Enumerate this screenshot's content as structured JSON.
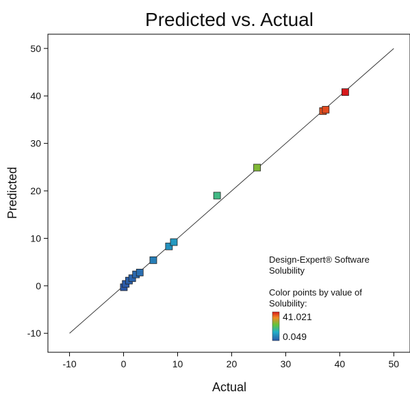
{
  "chart_data": {
    "type": "scatter",
    "title": "Predicted vs. Actual",
    "xlabel": "Actual",
    "ylabel": "Predicted",
    "xlim": [
      -14,
      53
    ],
    "ylim": [
      -14,
      53
    ],
    "xticks": [
      -10,
      0,
      10,
      20,
      30,
      40,
      50
    ],
    "yticks": [
      -10,
      0,
      10,
      20,
      30,
      40,
      50
    ],
    "reference_line": {
      "from": [
        -10,
        -10
      ],
      "to": [
        50,
        50
      ]
    },
    "points": [
      {
        "x": 0.049,
        "y": -0.3
      },
      {
        "x": 0.4,
        "y": 0.4
      },
      {
        "x": 1.0,
        "y": 1.1
      },
      {
        "x": 1.6,
        "y": 1.6
      },
      {
        "x": 2.3,
        "y": 2.4
      },
      {
        "x": 3.0,
        "y": 2.8
      },
      {
        "x": 5.5,
        "y": 5.4
      },
      {
        "x": 8.4,
        "y": 8.3
      },
      {
        "x": 9.3,
        "y": 9.2
      },
      {
        "x": 17.3,
        "y": 19.0
      },
      {
        "x": 24.7,
        "y": 24.9
      },
      {
        "x": 36.9,
        "y": 36.8
      },
      {
        "x": 37.4,
        "y": 37.1
      },
      {
        "x": 41.021,
        "y": 40.8
      }
    ],
    "software_label": "Design-Expert® Software",
    "response_label": "Solubility",
    "color_label_line1": "Color points by value of",
    "color_label_line2": "Solubility:",
    "color_max": 41.021,
    "color_min": 0.049,
    "color_max_label": "41.021",
    "color_min_label": "0.049",
    "colors": {
      "high": "#d7191c",
      "mid": "#63c43b",
      "low": "#2b58a8",
      "max_text": "#d7191c",
      "min_text": "#2b58a8"
    }
  }
}
